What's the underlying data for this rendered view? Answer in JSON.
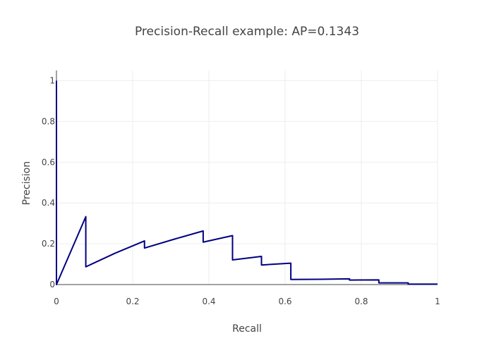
{
  "chart_data": {
    "type": "line",
    "title": "Precision-Recall example: AP=0.1343",
    "xlabel": "Recall",
    "ylabel": "Precision",
    "xlim": [
      0,
      1
    ],
    "ylim": [
      0,
      1.05
    ],
    "x_ticks": [
      "0",
      "0.2",
      "0.4",
      "0.6",
      "0.8",
      "1"
    ],
    "y_ticks": [
      "0",
      "0.2",
      "0.4",
      "0.6",
      "0.8",
      "1"
    ],
    "grid": true,
    "line_color": "#000080",
    "series": [
      {
        "x": [
          0,
          0,
          0.077,
          0.077,
          0.154,
          0.231,
          0.231,
          0.308,
          0.385,
          0.385,
          0.462,
          0.462,
          0.538,
          0.538,
          0.615,
          0.615,
          0.692,
          0.769,
          0.769,
          0.846,
          0.846,
          0.923,
          0.923,
          1.0
        ],
        "y": [
          1.0,
          0,
          0.333,
          0.087,
          0.154,
          0.214,
          0.179,
          0.222,
          0.263,
          0.208,
          0.24,
          0.121,
          0.138,
          0.096,
          0.105,
          0.025,
          0.026,
          0.028,
          0.022,
          0.023,
          0.008,
          0.008,
          0.002,
          0.002
        ]
      }
    ]
  }
}
